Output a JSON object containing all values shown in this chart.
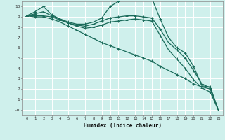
{
  "xlabel": "Humidex (Indice chaleur)",
  "bg_color": "#cff0ec",
  "grid_color": "#ffffff",
  "line_color": "#1a6b5a",
  "xlim": [
    -0.5,
    23.5
  ],
  "ylim": [
    -0.5,
    10.5
  ],
  "xtick_vals": [
    0,
    1,
    2,
    3,
    4,
    5,
    6,
    7,
    8,
    9,
    10,
    11,
    12,
    13,
    14,
    15,
    16,
    17,
    18,
    19,
    20,
    21,
    22,
    23
  ],
  "xtick_labels": [
    "0",
    "1",
    "2",
    "3",
    "4",
    "5",
    "6",
    "7",
    "8",
    "9",
    "10",
    "11",
    "12",
    "13",
    "14",
    "15",
    "16",
    "17",
    "18",
    "19",
    "20",
    "21",
    "22",
    "23"
  ],
  "ytick_vals": [
    0,
    1,
    2,
    3,
    4,
    5,
    6,
    7,
    8,
    9,
    10
  ],
  "ytick_labels": [
    "-0",
    "1",
    "2",
    "3",
    "4",
    "5",
    "6",
    "7",
    "8",
    "9",
    "10"
  ],
  "series": [
    {
      "x": [
        0,
        1,
        2,
        3,
        4,
        5,
        6,
        7,
        8,
        9,
        10,
        11,
        12,
        13,
        14,
        15,
        16,
        17,
        18,
        19,
        20,
        21,
        22,
        23
      ],
      "y": [
        9.1,
        9.5,
        10.0,
        9.2,
        8.8,
        8.5,
        8.3,
        8.3,
        8.5,
        8.9,
        10.0,
        10.5,
        10.8,
        10.8,
        10.8,
        10.8,
        8.8,
        7.0,
        6.0,
        5.5,
        4.2,
        2.3,
        2.2,
        -0.1
      ]
    },
    {
      "x": [
        0,
        1,
        2,
        3,
        4,
        5,
        6,
        7,
        8,
        9,
        10,
        11,
        12,
        13,
        14,
        15,
        16,
        17,
        18,
        19,
        20,
        21,
        22,
        23
      ],
      "y": [
        9.1,
        9.3,
        9.5,
        9.1,
        8.8,
        8.4,
        8.2,
        8.1,
        8.3,
        8.6,
        8.9,
        9.0,
        9.1,
        9.1,
        9.0,
        8.9,
        7.8,
        6.5,
        5.8,
        5.0,
        3.8,
        2.5,
        2.1,
        -0.1
      ]
    },
    {
      "x": [
        0,
        1,
        2,
        3,
        4,
        5,
        6,
        7,
        8,
        9,
        10,
        11,
        12,
        13,
        14,
        15,
        16,
        17,
        18,
        19,
        20,
        21,
        22,
        23
      ],
      "y": [
        9.1,
        9.1,
        9.1,
        9.0,
        8.7,
        8.4,
        8.1,
        7.9,
        8.0,
        8.2,
        8.5,
        8.6,
        8.7,
        8.8,
        8.7,
        8.6,
        7.2,
        5.8,
        4.9,
        4.0,
        2.9,
        2.1,
        1.7,
        -0.1
      ]
    },
    {
      "x": [
        0,
        1,
        2,
        3,
        4,
        5,
        6,
        7,
        8,
        9,
        10,
        11,
        12,
        13,
        14,
        15,
        16,
        17,
        18,
        19,
        20,
        21,
        22,
        23
      ],
      "y": [
        9.1,
        9.0,
        9.0,
        8.8,
        8.5,
        8.1,
        7.7,
        7.3,
        6.9,
        6.5,
        6.2,
        5.9,
        5.6,
        5.3,
        5.0,
        4.7,
        4.2,
        3.8,
        3.4,
        3.0,
        2.5,
        2.2,
        2.0,
        -0.1
      ]
    }
  ]
}
